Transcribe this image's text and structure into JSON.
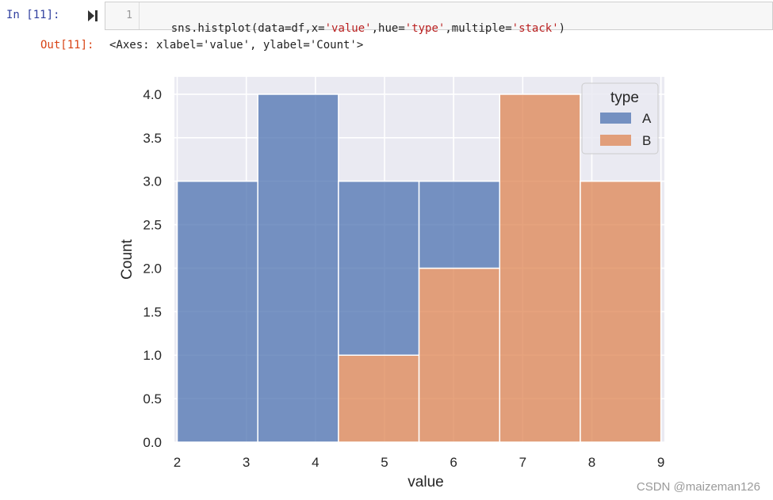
{
  "cell": {
    "in_prompt": "In  [11]:",
    "line_number": "1",
    "code_parts": [
      {
        "text": "sns.histplot(data=df,x=",
        "string": false
      },
      {
        "text": "'value'",
        "string": true
      },
      {
        "text": ",hue=",
        "string": false
      },
      {
        "text": "'type'",
        "string": true
      },
      {
        "text": ",multiple=",
        "string": false
      },
      {
        "text": "'stack'",
        "string": true
      },
      {
        "text": ")",
        "string": false
      }
    ]
  },
  "output": {
    "prompt": "Out[11]:",
    "text": "<Axes: xlabel='value', ylabel='Count'>"
  },
  "chart_data": {
    "type": "bar",
    "stacked": true,
    "xlabel": "value",
    "ylabel": "Count",
    "xlim": [
      1.96,
      9.05
    ],
    "ylim": [
      0,
      4.2
    ],
    "xticks": [
      2,
      3,
      4,
      5,
      6,
      7,
      8,
      9
    ],
    "yticks": [
      0.0,
      0.5,
      1.0,
      1.5,
      2.0,
      2.5,
      3.0,
      3.5,
      4.0
    ],
    "grid": true,
    "bins": [
      [
        2.0,
        3.1667
      ],
      [
        3.1667,
        4.3333
      ],
      [
        4.3333,
        5.5
      ],
      [
        5.5,
        6.6667
      ],
      [
        6.6667,
        7.8333
      ],
      [
        7.8333,
        9.0
      ]
    ],
    "series": [
      {
        "name": "B",
        "color": "#dd8452",
        "values": [
          0,
          0,
          1,
          2,
          4,
          3
        ]
      },
      {
        "name": "A",
        "color": "#4c72b0",
        "values": [
          3,
          4,
          2,
          1,
          0,
          0
        ]
      }
    ],
    "legend": {
      "title": "type",
      "position": "top-right",
      "entries": [
        {
          "label": "A",
          "color": "#4c72b0"
        },
        {
          "label": "B",
          "color": "#dd8452"
        }
      ]
    }
  },
  "watermark": "CSDN @maizeman126"
}
